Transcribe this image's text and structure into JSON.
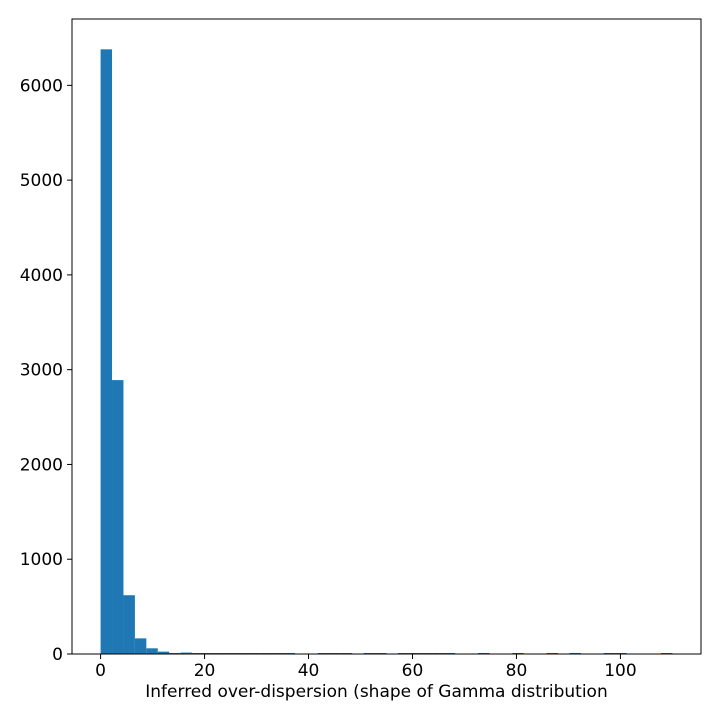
{
  "chart_data": {
    "type": "bar",
    "title": "",
    "xlabel": "Inferred over-dispersion (shape of Gamma distribution",
    "ylabel": "",
    "xlim": [
      -5.5,
      115.5
    ],
    "ylim": [
      0,
      6700
    ],
    "xticks": [
      0,
      20,
      40,
      60,
      80,
      100
    ],
    "yticks": [
      0,
      1000,
      2000,
      3000,
      4000,
      5000,
      6000
    ],
    "grid": false,
    "bar_color": "#1f77b4",
    "bins": [
      {
        "x0": 0.0,
        "x1": 2.2,
        "count": 6380
      },
      {
        "x0": 2.2,
        "x1": 4.4,
        "count": 2890
      },
      {
        "x0": 4.4,
        "x1": 6.6,
        "count": 620
      },
      {
        "x0": 6.6,
        "x1": 8.8,
        "count": 165
      },
      {
        "x0": 8.8,
        "x1": 11.0,
        "count": 60
      },
      {
        "x0": 11.0,
        "x1": 13.2,
        "count": 25
      },
      {
        "x0": 13.2,
        "x1": 15.4,
        "count": 10
      },
      {
        "x0": 15.4,
        "x1": 17.6,
        "count": 15
      },
      {
        "x0": 17.6,
        "x1": 19.8,
        "count": 6
      },
      {
        "x0": 19.8,
        "x1": 22.0,
        "count": 5
      },
      {
        "x0": 22.0,
        "x1": 24.2,
        "count": 4
      },
      {
        "x0": 24.2,
        "x1": 26.4,
        "count": 4
      },
      {
        "x0": 26.4,
        "x1": 28.6,
        "count": 3
      },
      {
        "x0": 28.6,
        "x1": 30.8,
        "count": 3
      },
      {
        "x0": 30.8,
        "x1": 33.0,
        "count": 3
      },
      {
        "x0": 33.0,
        "x1": 35.2,
        "count": 3
      },
      {
        "x0": 35.2,
        "x1": 37.4,
        "count": 3
      },
      {
        "x0": 41.8,
        "x1": 44.0,
        "count": 3
      },
      {
        "x0": 44.0,
        "x1": 46.2,
        "count": 3
      },
      {
        "x0": 46.2,
        "x1": 48.4,
        "count": 3
      },
      {
        "x0": 50.6,
        "x1": 52.8,
        "count": 3
      },
      {
        "x0": 52.8,
        "x1": 55.0,
        "count": 3
      },
      {
        "x0": 57.2,
        "x1": 59.4,
        "count": 3
      },
      {
        "x0": 59.4,
        "x1": 61.6,
        "count": 3
      },
      {
        "x0": 61.6,
        "x1": 63.8,
        "count": 3
      },
      {
        "x0": 63.8,
        "x1": 66.0,
        "count": 3
      },
      {
        "x0": 66.0,
        "x1": 68.2,
        "count": 3
      },
      {
        "x0": 72.6,
        "x1": 74.8,
        "count": 3
      },
      {
        "x0": 79.2,
        "x1": 81.4,
        "count": 3
      },
      {
        "x0": 85.8,
        "x1": 88.0,
        "count": 3
      },
      {
        "x0": 90.2,
        "x1": 92.4,
        "count": 3
      },
      {
        "x0": 96.8,
        "x1": 99.0,
        "count": 3
      },
      {
        "x0": 99.0,
        "x1": 101.2,
        "count": 3
      },
      {
        "x0": 107.8,
        "x1": 110.0,
        "count": 3
      }
    ]
  }
}
